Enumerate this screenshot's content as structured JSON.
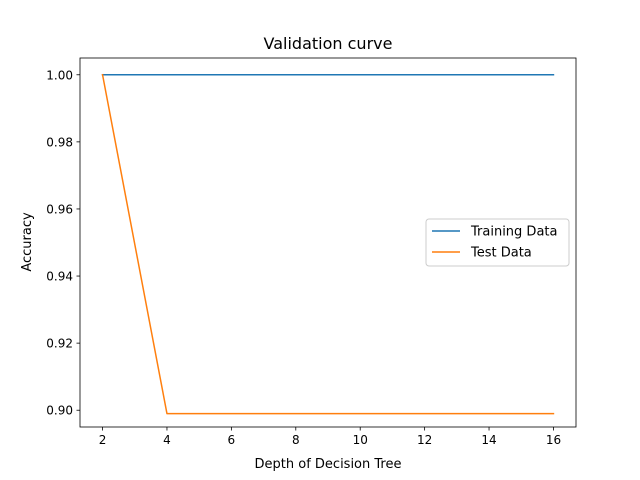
{
  "chart_data": {
    "type": "line",
    "title": "Validation curve",
    "xlabel": "Depth of Decision Tree",
    "ylabel": "Accuracy",
    "xlim": [
      1.3,
      16.7
    ],
    "ylim": [
      0.895,
      1.005
    ],
    "xticks": [
      2,
      4,
      6,
      8,
      10,
      12,
      14,
      16
    ],
    "yticks": [
      0.9,
      0.92,
      0.94,
      0.96,
      0.98,
      1.0
    ],
    "ytick_labels": [
      "0.90",
      "0.92",
      "0.94",
      "0.96",
      "0.98",
      "1.00"
    ],
    "grid": false,
    "legend_position": "center-right",
    "series": [
      {
        "name": "Training Data",
        "color": "#1f77b4",
        "x": [
          2,
          4,
          6,
          8,
          10,
          12,
          14,
          16
        ],
        "y": [
          1.0,
          1.0,
          1.0,
          1.0,
          1.0,
          1.0,
          1.0,
          1.0
        ]
      },
      {
        "name": "Test Data",
        "color": "#ff7f0e",
        "x": [
          2,
          4,
          6,
          8,
          10,
          12,
          14,
          16
        ],
        "y": [
          1.0,
          0.899,
          0.899,
          0.899,
          0.899,
          0.899,
          0.899,
          0.899
        ]
      }
    ]
  }
}
